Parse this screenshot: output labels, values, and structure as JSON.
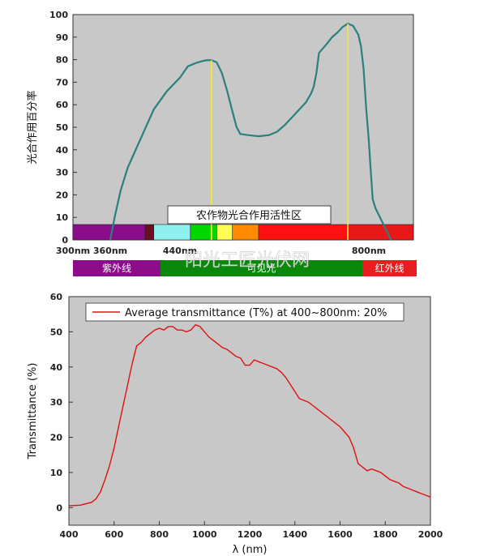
{
  "chart_data": [
    {
      "type": "line",
      "title": "",
      "ylabel": "光合作用百分率",
      "xlabel": "",
      "ylim": [
        0,
        100
      ],
      "yticks": [
        0,
        10,
        20,
        30,
        40,
        50,
        60,
        70,
        80,
        90,
        100
      ],
      "grid": false,
      "line_color": "#2a7f7f",
      "background": "#c8c8c8",
      "x_unit": "nm",
      "series": [
        {
          "points": [
            [
              360,
              0
            ],
            [
              365,
              10
            ],
            [
              372,
              22
            ],
            [
              380,
              32
            ],
            [
              395,
              45
            ],
            [
              410,
              58
            ],
            [
              425,
              66
            ],
            [
              440,
              72
            ],
            [
              455,
              77
            ],
            [
              470,
              78.5
            ],
            [
              480,
              79.2
            ],
            [
              490,
              79.7
            ],
            [
              500,
              79.8
            ],
            [
              510,
              78.8
            ],
            [
              520,
              74
            ],
            [
              530,
              66
            ],
            [
              540,
              57
            ],
            [
              548,
              50
            ],
            [
              555,
              47
            ],
            [
              570,
              46.5
            ],
            [
              590,
              46
            ],
            [
              610,
              46.5
            ],
            [
              625,
              48
            ],
            [
              640,
              51
            ],
            [
              660,
              56
            ],
            [
              680,
              61
            ],
            [
              690,
              65
            ],
            [
              695,
              68
            ],
            [
              700,
              74
            ],
            [
              705,
              83
            ],
            [
              720,
              87
            ],
            [
              730,
              90
            ],
            [
              740,
              92
            ],
            [
              750,
              94.5
            ],
            [
              760,
              96
            ],
            [
              770,
              95
            ],
            [
              780,
              91
            ],
            [
              785,
              86
            ],
            [
              790,
              76
            ],
            [
              795,
              58
            ],
            [
              800,
              44
            ],
            [
              803,
              32
            ],
            [
              807,
              18
            ],
            [
              812,
              14
            ],
            [
              820,
              10
            ],
            [
              830,
              5
            ],
            [
              840,
              0
            ]
          ]
        }
      ],
      "annotations": {
        "marker_lines": [
          500,
          760
        ],
        "marker_color": "#f0ea3c",
        "banner_text": "农作物光合作用活性区",
        "x_tick_labels": [
          {
            "text": "300nm",
            "nm": 300
          },
          {
            "text": "360nm",
            "nm": 360
          },
          {
            "text": "440nm",
            "nm": 440
          },
          {
            "text": "800nm",
            "nm": 800
          }
        ],
        "spectrum_bands": [
          {
            "from": 300,
            "to": 400,
            "color": "#8b0d8b"
          },
          {
            "from": 400,
            "to": 410,
            "color": "#6a0f1e"
          },
          {
            "from": 410,
            "to": 460,
            "color": "#8ff0f0"
          },
          {
            "from": 460,
            "to": 510,
            "color": "#00d800"
          },
          {
            "from": 510,
            "to": 540,
            "color": "#ffff55"
          },
          {
            "from": 540,
            "to": 590,
            "color": "#ff8a00"
          },
          {
            "from": 590,
            "to": 760,
            "color": "#ff1010"
          },
          {
            "from": 760,
            "to": 880,
            "color": "#e81818"
          }
        ],
        "region_bars": [
          {
            "label": "紫外线",
            "color": "#8b0d8b",
            "from": 300,
            "to": 380
          },
          {
            "label": "可见光",
            "color": "#0b870b",
            "from": 380,
            "to": 800
          },
          {
            "label": "红外线",
            "color": "#e81e1e",
            "from": 800,
            "to": 880
          }
        ],
        "watermark": "阳光工匠光伏网"
      }
    },
    {
      "type": "line",
      "title": "",
      "xlabel": "λ (nm)",
      "ylabel": "Transmittance (%)",
      "xlim": [
        400,
        2000
      ],
      "ylim": [
        -5,
        60
      ],
      "xticks": [
        400,
        600,
        800,
        1000,
        1200,
        1400,
        1600,
        1800,
        2000
      ],
      "yticks": [
        0,
        10,
        20,
        30,
        40,
        50,
        60
      ],
      "grid": false,
      "legend_position": "top",
      "background": "#c8c8c8",
      "series": [
        {
          "name": "Average transmittance (T%) at 400~800nm: 20%",
          "color": "#e01010",
          "x": [
            400,
            450,
            500,
            520,
            540,
            560,
            580,
            600,
            620,
            640,
            660,
            680,
            700,
            720,
            740,
            760,
            780,
            800,
            820,
            840,
            860,
            880,
            900,
            920,
            940,
            960,
            980,
            1000,
            1020,
            1040,
            1060,
            1080,
            1100,
            1120,
            1140,
            1160,
            1180,
            1200,
            1220,
            1240,
            1260,
            1280,
            1300,
            1320,
            1340,
            1360,
            1380,
            1400,
            1420,
            1440,
            1460,
            1480,
            1500,
            1520,
            1540,
            1560,
            1580,
            1600,
            1620,
            1640,
            1660,
            1680,
            1700,
            1720,
            1740,
            1760,
            1780,
            1800,
            1820,
            1840,
            1860,
            1880,
            1900,
            1920,
            1940,
            1960,
            1980,
            2000
          ],
          "y": [
            0.5,
            0.7,
            1.5,
            2.5,
            4.5,
            8,
            12,
            17,
            23,
            29,
            35,
            41,
            46,
            47,
            48.5,
            49.5,
            50.5,
            51,
            50.5,
            51.5,
            51.5,
            50.5,
            50.5,
            50,
            50.5,
            52,
            51.5,
            50,
            48.5,
            47.5,
            46.5,
            45.5,
            45,
            44,
            43,
            42.5,
            40.5,
            40.5,
            42,
            41.5,
            41,
            40.5,
            40,
            39.5,
            38.5,
            37,
            35,
            33,
            31,
            30.5,
            30,
            29,
            28,
            27,
            26,
            25,
            24,
            23,
            21.5,
            20,
            17,
            12.5,
            11.5,
            10.5,
            11,
            10.5,
            10,
            9,
            8,
            7.5,
            7,
            6,
            5.5,
            5,
            4.5,
            4,
            3.5,
            3
          ]
        }
      ]
    }
  ]
}
